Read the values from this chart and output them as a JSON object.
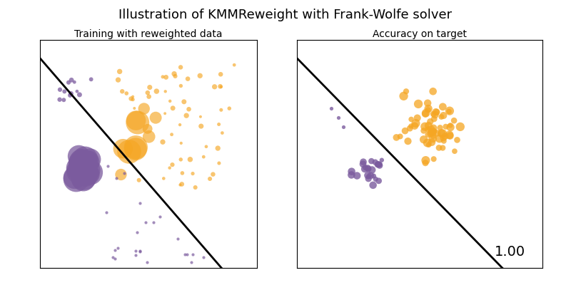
{
  "title": "Illustration of KMMReweight with Frank-Wolfe solver",
  "subtitle_left": "Training with reweighted data",
  "subtitle_right": "Accuracy on target",
  "score_text": "1.00",
  "orange_color": "#F5A623",
  "purple_color": "#7B5B9E",
  "line_color": "black",
  "line_width": 2.0,
  "seed": 42,
  "title_fontsize": 13,
  "subtitle_fontsize": 10,
  "score_fontsize": 14
}
